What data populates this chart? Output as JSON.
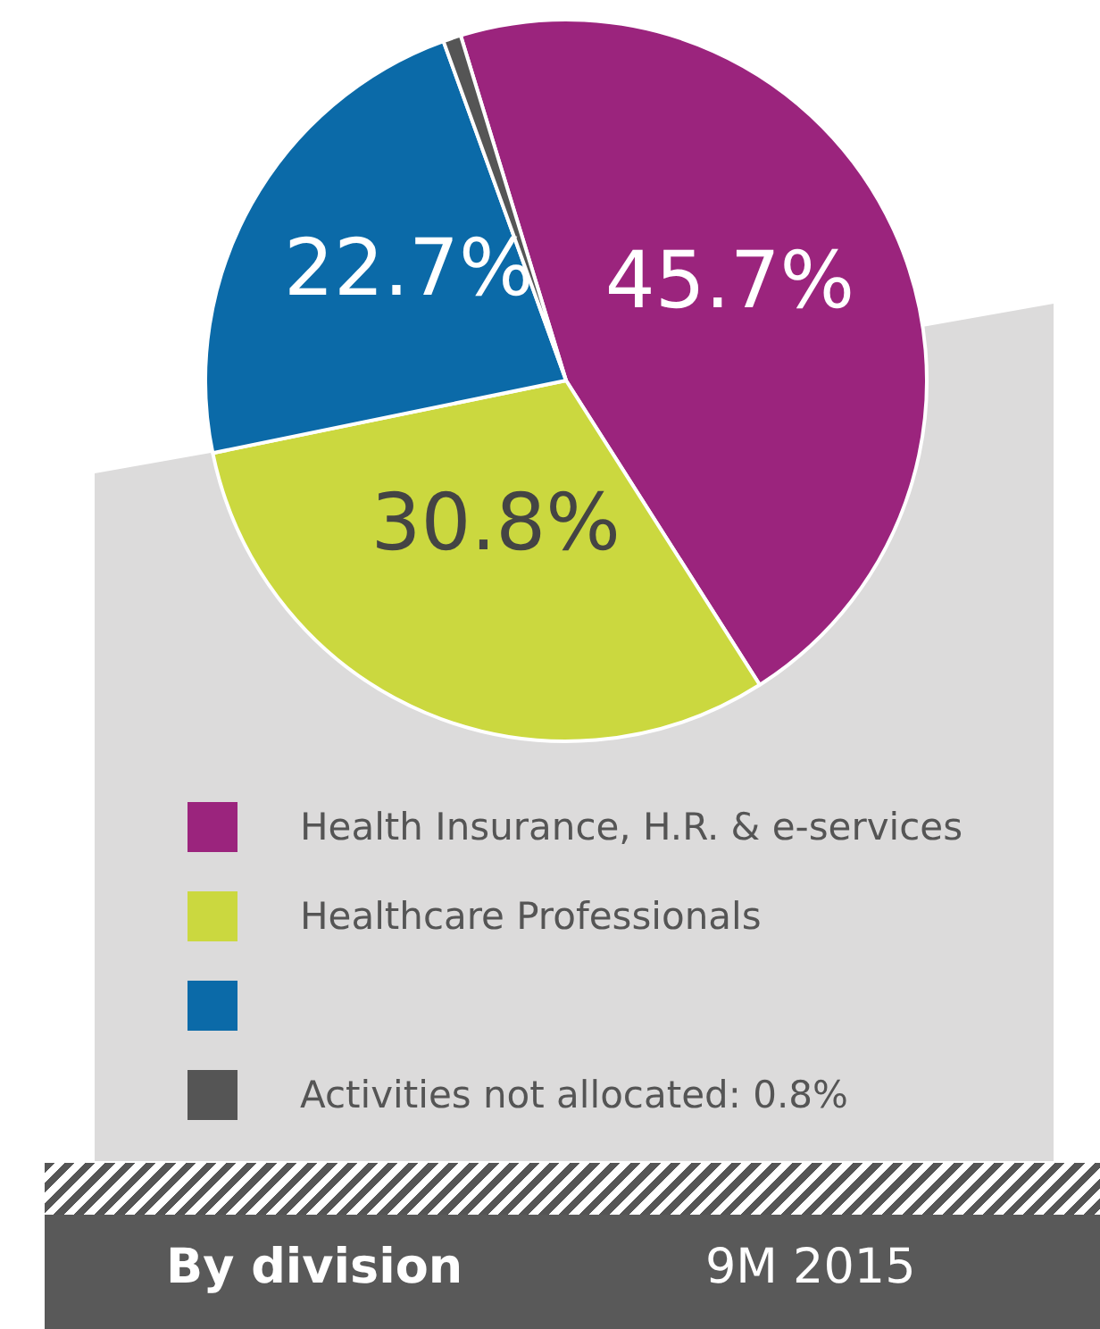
{
  "chart_data": {
    "type": "pie",
    "title": "By division",
    "subtitle": "9M 2015",
    "categories": [
      "Health Insurance, H.R. & e-services",
      "Healthcare Professionals",
      null,
      "Activities not allocated: 0.8%"
    ],
    "values": [
      45.7,
      30.8,
      22.7,
      0.8
    ],
    "colors": [
      "#9b247d",
      "#cbd83f",
      "#0b6aa8",
      "#555555"
    ],
    "value_labels": [
      "45.7%",
      "30.8%",
      "22.7%",
      null
    ],
    "legend": "bottom"
  }
}
